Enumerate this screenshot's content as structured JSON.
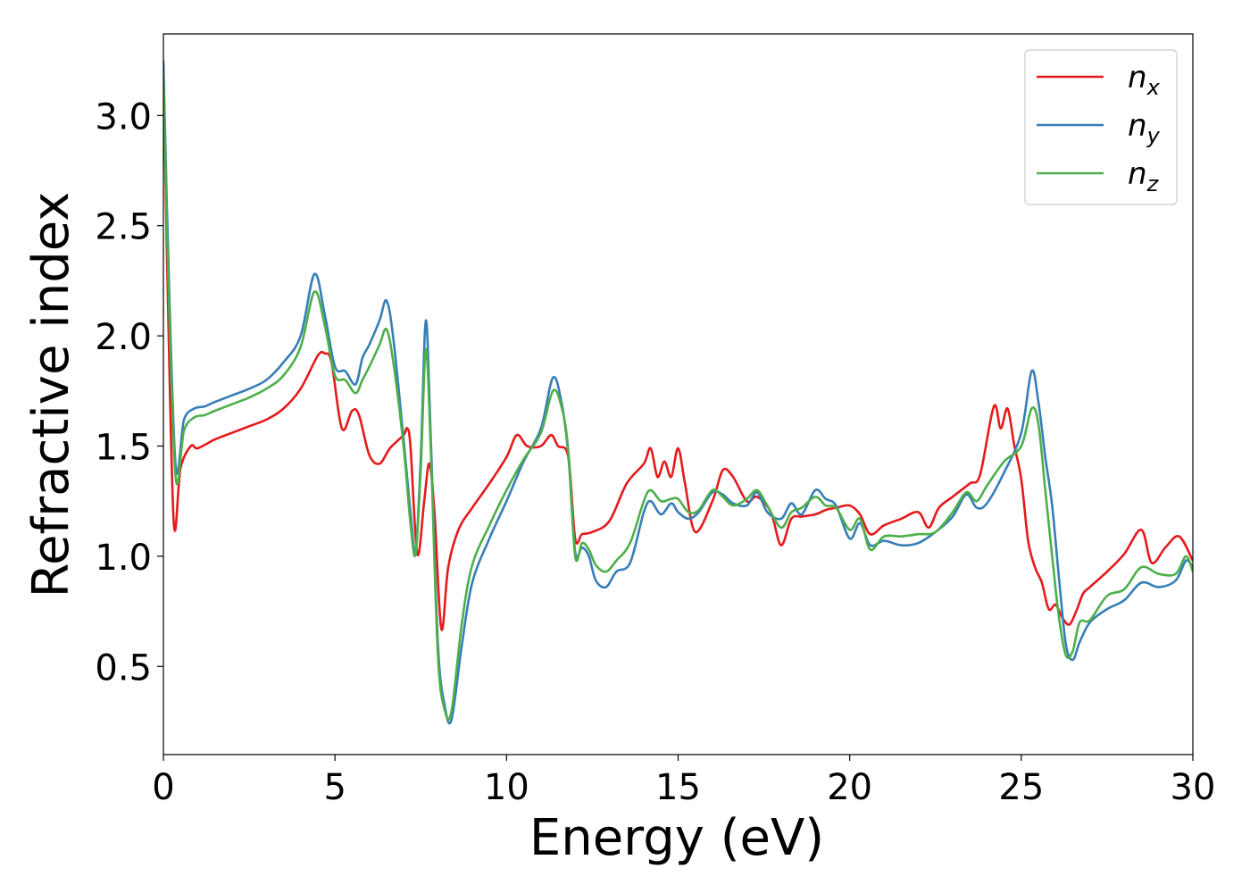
{
  "chart_data": {
    "type": "line",
    "title": "",
    "xlabel": "Energy (eV)",
    "ylabel": "Refractive index",
    "xlim": [
      0,
      30
    ],
    "ylim": [
      0.1,
      3.37
    ],
    "xticks": [
      0,
      5,
      10,
      15,
      20,
      25,
      30
    ],
    "xtick_labels": [
      "0",
      "5",
      "10",
      "15",
      "20",
      "25",
      "30"
    ],
    "yticks": [
      0.5,
      1.0,
      1.5,
      2.0,
      2.5,
      3.0
    ],
    "ytick_labels": [
      "0.5",
      "1.0",
      "1.5",
      "2.0",
      "2.5",
      "3.0"
    ],
    "grid": false,
    "legend_position": "top-right",
    "series": [
      {
        "name": "n",
        "subscript": "x",
        "color": "#e41a1c",
        "x": [
          0,
          0.1,
          0.3,
          0.5,
          0.8,
          1.0,
          1.5,
          2.0,
          2.5,
          3.0,
          3.5,
          4.0,
          4.5,
          4.7,
          4.9,
          5.2,
          5.5,
          5.7,
          6.0,
          6.3,
          6.6,
          7.0,
          7.1,
          7.2,
          7.4,
          7.6,
          7.75,
          7.9,
          8.1,
          8.3,
          8.6,
          9.0,
          9.5,
          10.0,
          10.3,
          10.6,
          11.0,
          11.3,
          11.5,
          11.8,
          12.0,
          12.2,
          12.5,
          13.0,
          13.5,
          14.0,
          14.2,
          14.4,
          14.6,
          14.8,
          15.0,
          15.2,
          15.5,
          16.0,
          16.3,
          16.6,
          17.0,
          17.3,
          17.7,
          18.0,
          18.3,
          18.6,
          19.0,
          19.3,
          19.6,
          20.0,
          20.3,
          20.6,
          21.0,
          21.5,
          22.0,
          22.3,
          22.6,
          23.0,
          23.5,
          23.8,
          24.2,
          24.4,
          24.6,
          24.8,
          25.0,
          25.2,
          25.4,
          25.6,
          25.8,
          26.0,
          26.2,
          26.4,
          26.6,
          26.8,
          27.0,
          27.5,
          28.0,
          28.5,
          28.8,
          29.2,
          29.6,
          30.0
        ],
        "values": [
          3.22,
          2.4,
          1.16,
          1.4,
          1.5,
          1.49,
          1.53,
          1.56,
          1.59,
          1.62,
          1.67,
          1.76,
          1.91,
          1.92,
          1.88,
          1.58,
          1.66,
          1.64,
          1.46,
          1.42,
          1.49,
          1.55,
          1.58,
          1.5,
          1.01,
          1.25,
          1.42,
          1.2,
          0.67,
          0.95,
          1.12,
          1.22,
          1.33,
          1.45,
          1.55,
          1.5,
          1.5,
          1.55,
          1.5,
          1.45,
          1.08,
          1.1,
          1.11,
          1.16,
          1.33,
          1.42,
          1.49,
          1.36,
          1.43,
          1.36,
          1.49,
          1.33,
          1.11,
          1.25,
          1.39,
          1.36,
          1.25,
          1.27,
          1.2,
          1.05,
          1.17,
          1.18,
          1.19,
          1.21,
          1.22,
          1.23,
          1.19,
          1.1,
          1.14,
          1.17,
          1.2,
          1.13,
          1.22,
          1.27,
          1.33,
          1.37,
          1.68,
          1.58,
          1.67,
          1.5,
          1.35,
          1.07,
          0.95,
          0.88,
          0.76,
          0.78,
          0.72,
          0.69,
          0.75,
          0.83,
          0.86,
          0.93,
          1.01,
          1.12,
          0.97,
          1.04,
          1.09,
          0.98
        ]
      },
      {
        "name": "n",
        "subscript": "y",
        "color": "#377eb8",
        "x": [
          0,
          0.1,
          0.35,
          0.6,
          0.9,
          1.2,
          1.5,
          2.0,
          2.5,
          3.0,
          3.5,
          4.0,
          4.4,
          4.7,
          5.0,
          5.3,
          5.6,
          5.8,
          6.0,
          6.3,
          6.5,
          6.7,
          7.0,
          7.2,
          7.35,
          7.5,
          7.65,
          7.8,
          8.0,
          8.2,
          8.4,
          8.7,
          9.0,
          9.5,
          10.0,
          10.5,
          11.0,
          11.35,
          11.6,
          11.8,
          12.0,
          12.2,
          12.4,
          12.6,
          12.9,
          13.2,
          13.6,
          14.0,
          14.2,
          14.5,
          14.8,
          15.0,
          15.3,
          15.6,
          16.0,
          16.3,
          16.6,
          17.0,
          17.3,
          17.6,
          18.0,
          18.3,
          18.6,
          19.0,
          19.3,
          19.6,
          20.0,
          20.3,
          20.6,
          21.0,
          21.5,
          22.0,
          22.5,
          23.0,
          23.4,
          23.7,
          24.0,
          24.5,
          25.0,
          25.3,
          25.5,
          25.7,
          25.9,
          26.1,
          26.3,
          26.5,
          26.7,
          27.0,
          27.5,
          28.0,
          28.5,
          29.0,
          29.5,
          29.8,
          30.0
        ],
        "values": [
          3.25,
          2.6,
          1.42,
          1.62,
          1.67,
          1.68,
          1.7,
          1.73,
          1.76,
          1.8,
          1.88,
          2.0,
          2.28,
          2.1,
          1.86,
          1.84,
          1.78,
          1.9,
          1.96,
          2.07,
          2.16,
          1.99,
          1.53,
          1.2,
          1.02,
          1.45,
          2.07,
          1.5,
          0.6,
          0.32,
          0.26,
          0.6,
          0.88,
          1.08,
          1.25,
          1.43,
          1.58,
          1.81,
          1.7,
          1.46,
          1.02,
          1.04,
          1.0,
          0.89,
          0.86,
          0.93,
          0.97,
          1.2,
          1.25,
          1.19,
          1.24,
          1.2,
          1.17,
          1.2,
          1.29,
          1.28,
          1.24,
          1.23,
          1.29,
          1.2,
          1.17,
          1.24,
          1.19,
          1.3,
          1.26,
          1.23,
          1.08,
          1.15,
          1.05,
          1.07,
          1.05,
          1.06,
          1.11,
          1.18,
          1.28,
          1.22,
          1.24,
          1.38,
          1.56,
          1.84,
          1.7,
          1.45,
          1.23,
          0.9,
          0.6,
          0.53,
          0.61,
          0.7,
          0.76,
          0.8,
          0.88,
          0.86,
          0.89,
          0.98,
          0.95
        ]
      },
      {
        "name": "n",
        "subscript": "z",
        "color": "#4daf4a",
        "x": [
          0,
          0.1,
          0.35,
          0.6,
          0.9,
          1.2,
          1.5,
          2.0,
          2.5,
          3.0,
          3.5,
          4.0,
          4.4,
          4.7,
          5.0,
          5.3,
          5.6,
          5.8,
          6.0,
          6.3,
          6.5,
          6.7,
          7.0,
          7.2,
          7.35,
          7.5,
          7.65,
          7.8,
          8.0,
          8.2,
          8.4,
          8.7,
          9.0,
          9.5,
          10.0,
          10.5,
          11.0,
          11.35,
          11.6,
          11.8,
          12.0,
          12.2,
          12.4,
          12.6,
          12.9,
          13.2,
          13.6,
          14.0,
          14.2,
          14.5,
          14.8,
          15.0,
          15.3,
          15.6,
          16.0,
          16.3,
          16.6,
          17.0,
          17.3,
          17.6,
          18.0,
          18.3,
          18.6,
          19.0,
          19.3,
          19.6,
          20.0,
          20.3,
          20.6,
          21.0,
          21.5,
          22.0,
          22.5,
          23.0,
          23.4,
          23.7,
          24.0,
          24.5,
          25.0,
          25.3,
          25.5,
          25.7,
          25.9,
          26.1,
          26.3,
          26.5,
          26.7,
          27.0,
          27.5,
          28.0,
          28.5,
          29.0,
          29.5,
          29.8,
          30.0
        ],
        "values": [
          3.2,
          2.5,
          1.37,
          1.57,
          1.63,
          1.64,
          1.66,
          1.69,
          1.72,
          1.76,
          1.82,
          1.95,
          2.2,
          2.05,
          1.82,
          1.8,
          1.74,
          1.8,
          1.86,
          1.96,
          2.03,
          1.88,
          1.5,
          1.15,
          1.01,
          1.4,
          1.94,
          1.45,
          0.55,
          0.3,
          0.3,
          0.7,
          0.96,
          1.14,
          1.3,
          1.44,
          1.56,
          1.75,
          1.68,
          1.48,
          1.0,
          1.06,
          1.03,
          0.96,
          0.93,
          0.98,
          1.06,
          1.25,
          1.3,
          1.25,
          1.26,
          1.26,
          1.2,
          1.21,
          1.3,
          1.27,
          1.23,
          1.26,
          1.3,
          1.23,
          1.13,
          1.2,
          1.22,
          1.27,
          1.23,
          1.22,
          1.12,
          1.17,
          1.03,
          1.09,
          1.09,
          1.1,
          1.11,
          1.2,
          1.29,
          1.25,
          1.32,
          1.43,
          1.5,
          1.67,
          1.6,
          1.3,
          1.0,
          0.72,
          0.55,
          0.57,
          0.7,
          0.71,
          0.82,
          0.85,
          0.95,
          0.92,
          0.92,
          1.0,
          0.93
        ]
      }
    ]
  }
}
